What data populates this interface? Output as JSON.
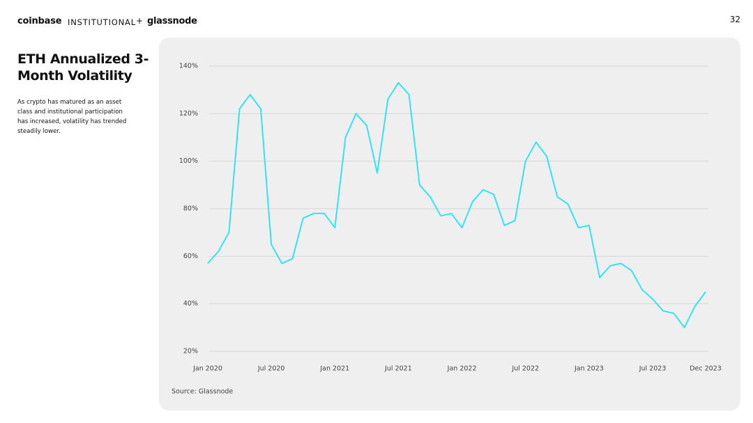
{
  "header": {
    "brand": "coinbase",
    "brand_sub": "INSTITUTIONAL",
    "plus": "+",
    "partner": "glassnode",
    "page_number": "32"
  },
  "chart_data": {
    "type": "line",
    "title": "ETH Annualized 3-Month Volatility",
    "subtitle": "As crypto has matured as an asset class and institutional participation has increased, volatility has trended steadily lower.",
    "source": "Source: Glassnode",
    "x": [
      "2020-01",
      "2020-02",
      "2020-03",
      "2020-04",
      "2020-05",
      "2020-06",
      "2020-07",
      "2020-08",
      "2020-09",
      "2020-10",
      "2020-11",
      "2020-12",
      "2021-01",
      "2021-02",
      "2021-03",
      "2021-04",
      "2021-05",
      "2021-06",
      "2021-07",
      "2021-08",
      "2021-09",
      "2021-10",
      "2021-11",
      "2021-12",
      "2022-01",
      "2022-02",
      "2022-03",
      "2022-04",
      "2022-05",
      "2022-06",
      "2022-07",
      "2022-08",
      "2022-09",
      "2022-10",
      "2022-11",
      "2022-12",
      "2023-01",
      "2023-02",
      "2023-03",
      "2023-04",
      "2023-05",
      "2023-06",
      "2023-07",
      "2023-08",
      "2023-09",
      "2023-10",
      "2023-11",
      "2023-12"
    ],
    "series": [
      {
        "name": "ETH volatility",
        "color": "#33e3f2",
        "values": [
          57,
          62,
          70,
          122,
          128,
          122,
          65,
          57,
          59,
          76,
          78,
          78,
          72,
          110,
          120,
          115,
          95,
          126,
          133,
          128,
          90,
          85,
          77,
          78,
          72,
          83,
          88,
          86,
          73,
          75,
          100,
          108,
          102,
          85,
          82,
          72,
          73,
          51,
          56,
          57,
          54,
          46,
          42,
          37,
          36,
          30,
          39,
          45
        ]
      }
    ],
    "xticks": [
      {
        "value": "2020-01",
        "label": "Jan 2020"
      },
      {
        "value": "2020-07",
        "label": "Jul 2020"
      },
      {
        "value": "2021-01",
        "label": "Jan 2021"
      },
      {
        "value": "2021-07",
        "label": "Jul 2021"
      },
      {
        "value": "2022-01",
        "label": "Jan 2022"
      },
      {
        "value": "2022-07",
        "label": "Jul 2022"
      },
      {
        "value": "2023-01",
        "label": "Jan 2023"
      },
      {
        "value": "2023-07",
        "label": "Jul 2023"
      },
      {
        "value": "2023-12",
        "label": "Dec 2023"
      }
    ],
    "ylim": [
      20,
      140
    ],
    "yticks": [
      {
        "value": 20,
        "label": "20%"
      },
      {
        "value": 40,
        "label": "40%"
      },
      {
        "value": 60,
        "label": "60%"
      },
      {
        "value": 80,
        "label": "80%"
      },
      {
        "value": 100,
        "label": "100%"
      },
      {
        "value": 120,
        "label": "120%"
      },
      {
        "value": 140,
        "label": "140%"
      }
    ],
    "grid": true
  }
}
